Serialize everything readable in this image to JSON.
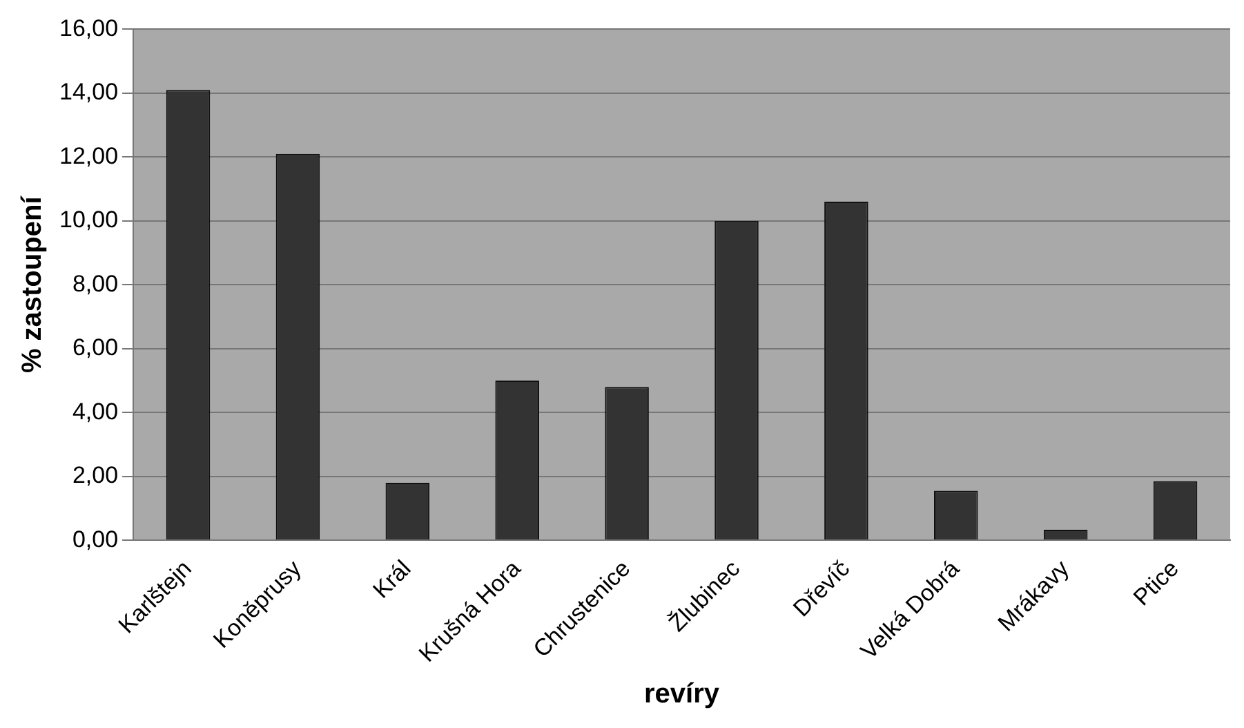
{
  "chart_data": {
    "type": "bar",
    "xlabel": "revíry",
    "ylabel": "% zastoupení",
    "categories": [
      "Karlštejn",
      "Koněprusy",
      "Král",
      "Krušná Hora",
      "Chrustenice",
      "Žlubinec",
      "Dřevíč",
      "Velká Dobrá",
      "Mrákavy",
      "Ptice"
    ],
    "values": [
      14.1,
      12.1,
      1.8,
      5.0,
      4.8,
      10.0,
      10.6,
      1.55,
      0.33,
      1.85
    ],
    "color": "#333333",
    "ylim": [
      0,
      16
    ],
    "yticks": [
      {
        "value": 0,
        "label": "0,00"
      },
      {
        "value": 2,
        "label": "2,00"
      },
      {
        "value": 4,
        "label": "4,00"
      },
      {
        "value": 6,
        "label": "6,00"
      },
      {
        "value": 8,
        "label": "8,00"
      },
      {
        "value": 10,
        "label": "10,00"
      },
      {
        "value": 12,
        "label": "12,00"
      },
      {
        "value": 14,
        "label": "14,00"
      },
      {
        "value": 16,
        "label": "16,00"
      }
    ],
    "grid": "y",
    "legend": false
  }
}
